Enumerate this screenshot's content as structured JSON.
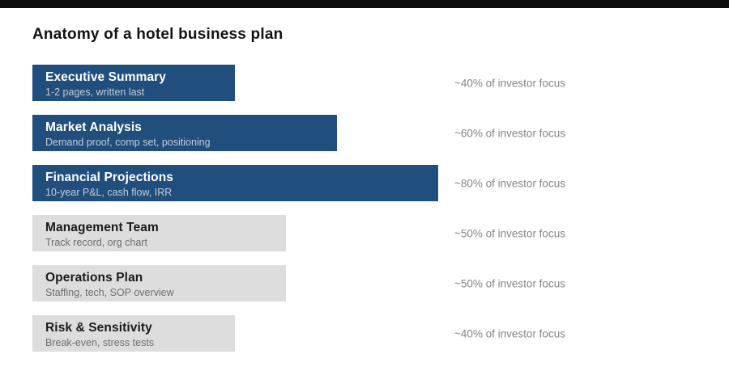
{
  "page": {
    "title": "Anatomy of a hotel business plan"
  },
  "colors": {
    "top_bar": "#0d0d0d",
    "accent": "#204F7E",
    "muted_bar": "#dddddd",
    "title_text": "#121212",
    "focus_label_text": "#858585",
    "bar_label_on_accent": "#ffffff",
    "bar_sublabel_on_accent": "#c5cbd4",
    "bar_label_on_muted": "#1a1a1a",
    "bar_sublabel_on_muted": "#6e6e6e"
  },
  "bars": [
    {
      "label": "Executive Summary",
      "sublabel": "1-2 pages, written last",
      "focus_label": "~40% of investor focus",
      "value_pct": 40,
      "highlighted": true
    },
    {
      "label": "Market Analysis",
      "sublabel": "Demand proof, comp set, positioning",
      "focus_label": "~60% of investor focus",
      "value_pct": 60,
      "highlighted": true
    },
    {
      "label": "Financial Projections",
      "sublabel": "10-year P&L, cash flow, IRR",
      "focus_label": "~80% of investor focus",
      "value_pct": 80,
      "highlighted": true
    },
    {
      "label": "Management Team",
      "sublabel": "Track record, org chart",
      "focus_label": "~50% of investor focus",
      "value_pct": 50,
      "highlighted": false
    },
    {
      "label": "Operations Plan",
      "sublabel": "Staffing, tech, SOP overview",
      "focus_label": "~50% of investor focus",
      "value_pct": 50,
      "highlighted": false
    },
    {
      "label": "Risk & Sensitivity",
      "sublabel": "Break-even, stress tests",
      "focus_label": "~40% of investor focus",
      "value_pct": 40,
      "highlighted": false
    }
  ],
  "chart_data": {
    "type": "bar",
    "orientation": "horizontal",
    "title": "Anatomy of a hotel business plan",
    "categories": [
      "Executive Summary",
      "Market Analysis",
      "Financial Projections",
      "Management Team",
      "Operations Plan",
      "Risk & Sensitivity"
    ],
    "category_subtitles": [
      "1-2 pages, written last",
      "Demand proof, comp set, positioning",
      "10-year P&L, cash flow, IRR",
      "Track record, org chart",
      "Staffing, tech, SOP overview",
      "Break-even, stress tests"
    ],
    "values": [
      40,
      60,
      80,
      50,
      50,
      40
    ],
    "value_labels": [
      "~40% of investor focus",
      "~60% of investor focus",
      "~80% of investor focus",
      "~50% of investor focus",
      "~50% of investor focus",
      "~40% of investor focus"
    ],
    "highlighted_categories": [
      "Executive Summary",
      "Market Analysis",
      "Financial Projections"
    ],
    "xlabel": "",
    "ylabel": "",
    "xlim": [
      0,
      100
    ],
    "grid": false,
    "legend": false
  }
}
